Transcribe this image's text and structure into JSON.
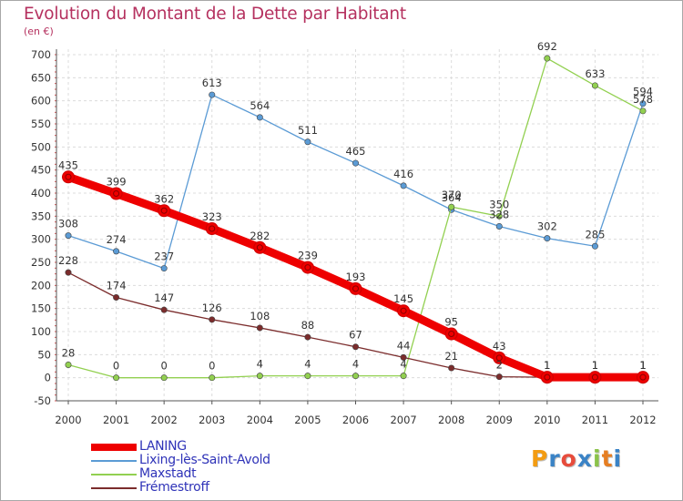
{
  "title": "Evolution du Montant de la Dette par Habitant",
  "unit": "(en €)",
  "logo": {
    "letters": [
      "P",
      "r",
      "o",
      "x",
      "i",
      "t",
      "i"
    ],
    "colors": [
      "#f39c12",
      "#3a83c6",
      "#e74c3c",
      "#3a83c6",
      "#8bc34a",
      "#e67e22",
      "#3a83c6"
    ]
  },
  "chart_data": {
    "type": "line",
    "title": "Evolution du Montant de la Dette par Habitant",
    "ylabel": "(en €)",
    "x": [
      "2000",
      "2001",
      "2002",
      "2003",
      "2004",
      "2005",
      "2006",
      "2007",
      "2008",
      "2009",
      "2010",
      "2011",
      "2012"
    ],
    "ylim": [
      -50,
      700
    ],
    "yticks": [
      "-50",
      "0",
      "50",
      "100",
      "150",
      "200",
      "250",
      "300",
      "350",
      "400",
      "450",
      "500",
      "550",
      "600",
      "650",
      "700"
    ],
    "grid": true,
    "legend": "bottom-left",
    "series": [
      {
        "name": "LANING",
        "color": "#ee0000",
        "values": [
          435,
          399,
          362,
          323,
          282,
          239,
          193,
          145,
          95,
          43,
          1,
          1,
          1
        ],
        "labels": [
          "435",
          "399",
          "362",
          "323",
          "282",
          "239",
          "193",
          "145",
          "95",
          "43",
          "1",
          "1",
          "1"
        ]
      },
      {
        "name": "Lixing-lès-Saint-Avold",
        "color": "#5b9bd5",
        "values": [
          308,
          274,
          237,
          613,
          564,
          511,
          465,
          416,
          364,
          328,
          302,
          285,
          594
        ],
        "labels": [
          "308",
          "274",
          "237",
          "613",
          "564",
          "511",
          "465",
          "416",
          "364",
          "328",
          "302",
          "285",
          "594"
        ]
      },
      {
        "name": "Maxstadt",
        "color": "#92d050",
        "values": [
          28,
          0,
          0,
          0,
          4,
          4,
          4,
          4,
          370,
          350,
          692,
          633,
          578
        ],
        "labels": [
          "28",
          "0",
          "0",
          "0",
          "4",
          "4",
          "4",
          "4",
          "370",
          "350",
          "692",
          "633",
          "578"
        ]
      },
      {
        "name": "Frémestroff",
        "color": "#7b2c2c",
        "values": [
          228,
          174,
          147,
          126,
          108,
          88,
          67,
          44,
          21,
          2,
          1,
          1,
          1
        ],
        "labels": [
          "228",
          "174",
          "147",
          "126",
          "108",
          "88",
          "67",
          "44",
          "21",
          "2",
          "1",
          "1",
          "1"
        ]
      }
    ]
  }
}
